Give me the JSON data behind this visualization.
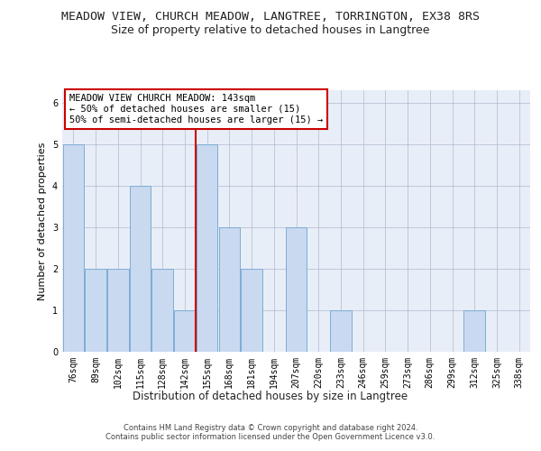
{
  "title": "MEADOW VIEW, CHURCH MEADOW, LANGTREE, TORRINGTON, EX38 8RS",
  "subtitle": "Size of property relative to detached houses in Langtree",
  "xlabel": "Distribution of detached houses by size in Langtree",
  "ylabel": "Number of detached properties",
  "categories": [
    "76sqm",
    "89sqm",
    "102sqm",
    "115sqm",
    "128sqm",
    "142sqm",
    "155sqm",
    "168sqm",
    "181sqm",
    "194sqm",
    "207sqm",
    "220sqm",
    "233sqm",
    "246sqm",
    "259sqm",
    "273sqm",
    "286sqm",
    "299sqm",
    "312sqm",
    "325sqm",
    "338sqm"
  ],
  "values": [
    5,
    2,
    2,
    4,
    2,
    1,
    5,
    3,
    2,
    0,
    3,
    0,
    1,
    0,
    0,
    0,
    0,
    0,
    1,
    0,
    0
  ],
  "bar_color": "#c9d9f0",
  "bar_edge_color": "#7dadd4",
  "highlight_index": 5,
  "red_line_color": "#cc0000",
  "ylim": [
    0,
    6.3
  ],
  "yticks": [
    0,
    1,
    2,
    3,
    4,
    5,
    6
  ],
  "annotation_text": "MEADOW VIEW CHURCH MEADOW: 143sqm\n← 50% of detached houses are smaller (15)\n50% of semi-detached houses are larger (15) →",
  "footer_text": "Contains HM Land Registry data © Crown copyright and database right 2024.\nContains public sector information licensed under the Open Government Licence v3.0.",
  "background_color": "#e8eef8",
  "grid_color": "#b0b8cc",
  "title_fontsize": 9.5,
  "subtitle_fontsize": 9,
  "xlabel_fontsize": 8.5,
  "ylabel_fontsize": 8,
  "tick_fontsize": 7,
  "annotation_fontsize": 7.5,
  "footer_fontsize": 6
}
